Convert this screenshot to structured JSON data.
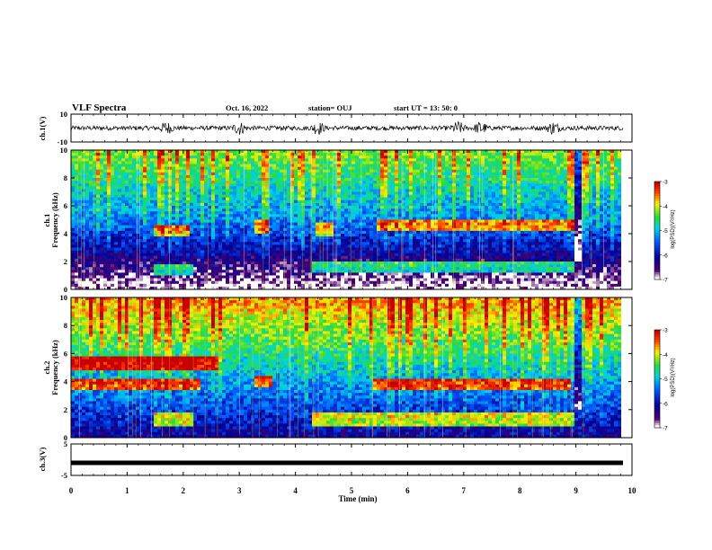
{
  "header": {
    "title": "VLF Spectra",
    "date": "Oct. 16, 2022",
    "station": "station= OUJ",
    "start": "start  UT  =   13: 50: 0"
  },
  "chart_data": [
    {
      "type": "line",
      "panel": "ch1-waveform",
      "ylabel": "ch.1(V)",
      "ylim": [
        -10,
        10
      ],
      "yticks": [
        "10",
        "-10"
      ],
      "xlim": [
        0,
        10
      ],
      "baseline": 0,
      "bursts_min": [
        1.7,
        3.0,
        4.4,
        6.9,
        7.3,
        8.6
      ]
    },
    {
      "type": "heatmap",
      "panel": "ch1-spectrogram",
      "ylabel": "ch.1 Frequency (kHz)",
      "ylabel_line1": "ch.1",
      "ylabel_line2": "Frequency  (kHz)",
      "ylim": [
        0,
        10
      ],
      "yticks": [
        "0",
        "2",
        "4",
        "6",
        "8",
        "10"
      ],
      "xlim": [
        0,
        10
      ],
      "bands": [
        {
          "t0": 1.45,
          "t1": 2.15,
          "f": 1.4
        },
        {
          "t0": 1.45,
          "t1": 2.1,
          "f": 4.2
        },
        {
          "t0": 3.3,
          "t1": 3.55,
          "f": 4.5
        },
        {
          "t0": 4.35,
          "t1": 4.7,
          "f": 4.3
        },
        {
          "t0": 4.3,
          "t1": 8.95,
          "f": 1.6
        },
        {
          "t0": 5.45,
          "t1": 8.95,
          "f": 4.6
        }
      ],
      "colorbar": {
        "label": "log(PSD)(V²/Hz)",
        "range": [
          -7,
          -3
        ],
        "ticks": [
          "-3",
          "-4",
          "-5",
          "-6",
          "-7"
        ]
      }
    },
    {
      "type": "heatmap",
      "panel": "ch2-spectrogram",
      "ylabel": "ch.2 Frequency (kHz)",
      "ylabel_line1": "ch.2",
      "ylabel_line2": "Frequency  (kHz)",
      "ylim": [
        0,
        10
      ],
      "yticks": [
        "0",
        "2",
        "4",
        "6",
        "8",
        "10"
      ],
      "xlim": [
        0,
        10
      ],
      "bands": [
        {
          "t0": 0.0,
          "t1": 2.6,
          "f": 5.3
        },
        {
          "t0": 0.0,
          "t1": 2.3,
          "f": 3.8
        },
        {
          "t0": 1.45,
          "t1": 2.15,
          "f": 1.3
        },
        {
          "t0": 3.3,
          "t1": 3.6,
          "f": 4.0
        },
        {
          "t0": 4.3,
          "t1": 8.95,
          "f": 1.3
        },
        {
          "t0": 5.4,
          "t1": 8.9,
          "f": 3.8
        }
      ],
      "colorbar": {
        "label": "log(PSD)(V²/Hz)",
        "range": [
          -7,
          -3
        ],
        "ticks": [
          "-3",
          "-4",
          "-5",
          "-6",
          "-7"
        ]
      }
    },
    {
      "type": "line",
      "panel": "ch3-waveform",
      "ylabel": "ch.3(V)",
      "ylim": [
        -5,
        5
      ],
      "yticks": [
        "5",
        "-5"
      ],
      "xlim": [
        0,
        10
      ],
      "baseline": -1.0
    }
  ],
  "xaxis": {
    "label": "Time  (min)",
    "ticks": [
      "0",
      "1",
      "2",
      "3",
      "4",
      "5",
      "6",
      "7",
      "8",
      "9",
      "10"
    ]
  }
}
